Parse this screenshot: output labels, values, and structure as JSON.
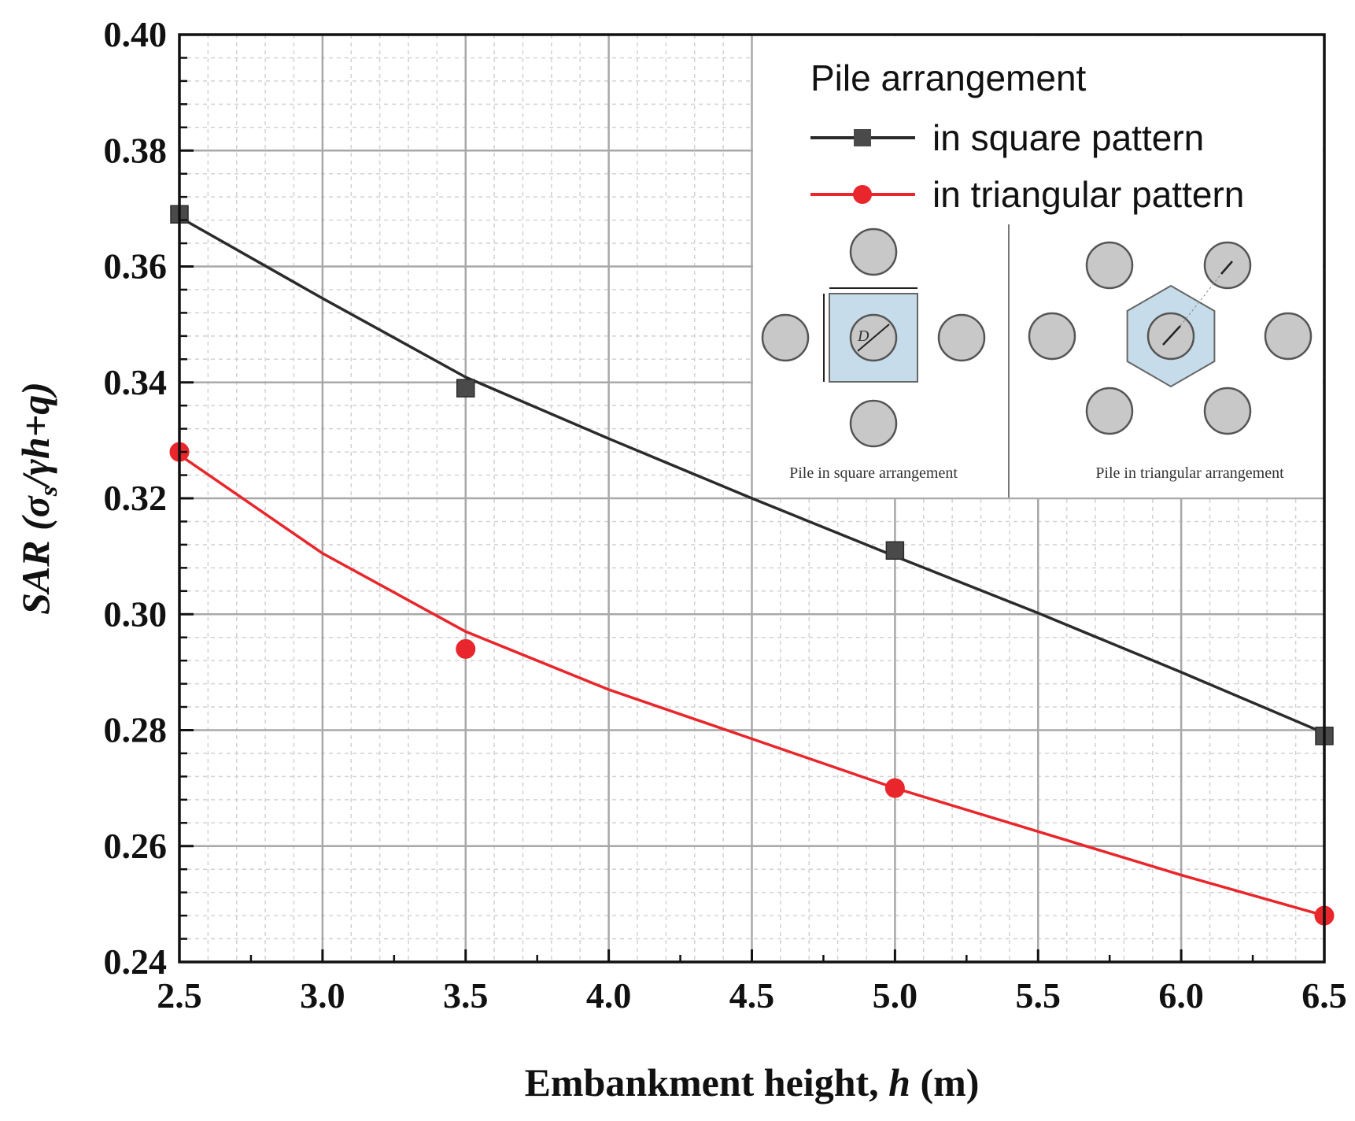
{
  "chart_data": {
    "type": "line",
    "title": "",
    "xlabel": "Embankment height, h (m)",
    "xlabel_parts": {
      "main": "Embankment height, ",
      "var": "h",
      "unit": " (m)"
    },
    "ylabel": "SAR (σs/γh+q)",
    "ylabel_parts": {
      "sar": "SAR (",
      "sigma": "σ",
      "sub": "s",
      "rest": "/γh+q)"
    },
    "xlim": [
      2.5,
      6.5
    ],
    "ylim": [
      0.24,
      0.4
    ],
    "x_ticks": [
      2.5,
      3.0,
      3.5,
      4.0,
      4.5,
      5.0,
      5.5,
      6.0,
      6.5
    ],
    "x_tick_labels": [
      "2.5",
      "3.0",
      "3.5",
      "4.0",
      "4.5",
      "5.0",
      "5.5",
      "6.0",
      "6.5"
    ],
    "y_ticks": [
      0.24,
      0.26,
      0.28,
      0.3,
      0.32,
      0.34,
      0.36,
      0.38,
      0.4
    ],
    "y_tick_labels": [
      "0.24",
      "0.26",
      "0.28",
      "0.30",
      "0.32",
      "0.34",
      "0.36",
      "0.38",
      "0.40"
    ],
    "grid": true,
    "legend_position": "top-right",
    "legend_title": "Pile arrangement",
    "series": [
      {
        "name": "in square pattern",
        "color": "#2b2b2b",
        "marker": "square",
        "x": [
          2.5,
          3.5,
          5.0,
          6.5
        ],
        "y": [
          0.369,
          0.339,
          0.311,
          0.279
        ],
        "fit_y": [
          0.3685,
          0.3545,
          0.3409,
          0.3303,
          0.32,
          0.31,
          0.3002,
          0.29,
          0.2795
        ]
      },
      {
        "name": "in triangular pattern",
        "color": "#e8262b",
        "marker": "circle",
        "x": [
          2.5,
          3.5,
          5.0,
          6.5
        ],
        "y": [
          0.328,
          0.294,
          0.27,
          0.248
        ],
        "fit_y": [
          0.3275,
          0.3105,
          0.297,
          0.287,
          0.2785,
          0.27,
          0.2625,
          0.255,
          0.248
        ]
      }
    ],
    "inset": {
      "square_caption": "Pile in square arrangement",
      "triangular_caption": "Pile in triangular arrangement",
      "square_dim_label": "D",
      "pile_fill": "#c8c8c8",
      "cell_fill": "#c6dcea"
    }
  }
}
